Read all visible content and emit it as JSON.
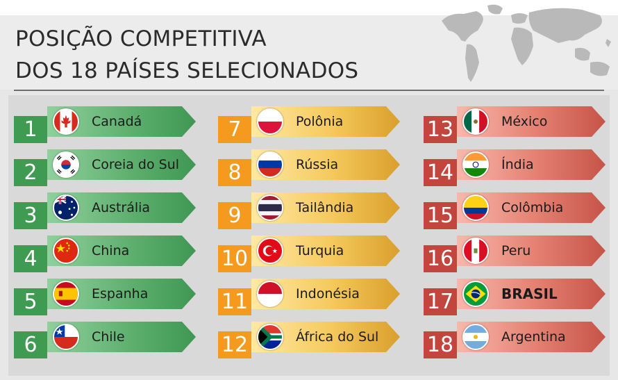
{
  "title": {
    "line1": "POSIÇÃO COMPETITIVA",
    "line2": "DOS 18 PAÍSES SELECIONADOS"
  },
  "colors": {
    "green": "#3f9a52",
    "orange": "#f39a1f",
    "red": "#c2453e"
  },
  "rankings": [
    {
      "rank": "1",
      "country": "Canadá",
      "flag": "canada-flag-icon"
    },
    {
      "rank": "2",
      "country": "Coreia do Sul",
      "flag": "south-korea-flag-icon"
    },
    {
      "rank": "3",
      "country": "Austrália",
      "flag": "australia-flag-icon"
    },
    {
      "rank": "4",
      "country": "China",
      "flag": "china-flag-icon"
    },
    {
      "rank": "5",
      "country": "Espanha",
      "flag": "spain-flag-icon"
    },
    {
      "rank": "6",
      "country": "Chile",
      "flag": "chile-flag-icon"
    },
    {
      "rank": "7",
      "country": "Polônia",
      "flag": "poland-flag-icon"
    },
    {
      "rank": "8",
      "country": "Rússia",
      "flag": "russia-flag-icon"
    },
    {
      "rank": "9",
      "country": "Tailândia",
      "flag": "thailand-flag-icon"
    },
    {
      "rank": "10",
      "country": "Turquia",
      "flag": "turkey-flag-icon"
    },
    {
      "rank": "11",
      "country": "Indonésia",
      "flag": "indonesia-flag-icon"
    },
    {
      "rank": "12",
      "country": "África do Sul",
      "flag": "south-africa-flag-icon"
    },
    {
      "rank": "13",
      "country": "México",
      "flag": "mexico-flag-icon"
    },
    {
      "rank": "14",
      "country": "Índia",
      "flag": "india-flag-icon"
    },
    {
      "rank": "15",
      "country": "Colômbia",
      "flag": "colombia-flag-icon"
    },
    {
      "rank": "16",
      "country": "Peru",
      "flag": "peru-flag-icon"
    },
    {
      "rank": "17",
      "country": "BRASIL",
      "flag": "brazil-flag-icon"
    },
    {
      "rank": "18",
      "country": "Argentina",
      "flag": "argentina-flag-icon"
    }
  ]
}
